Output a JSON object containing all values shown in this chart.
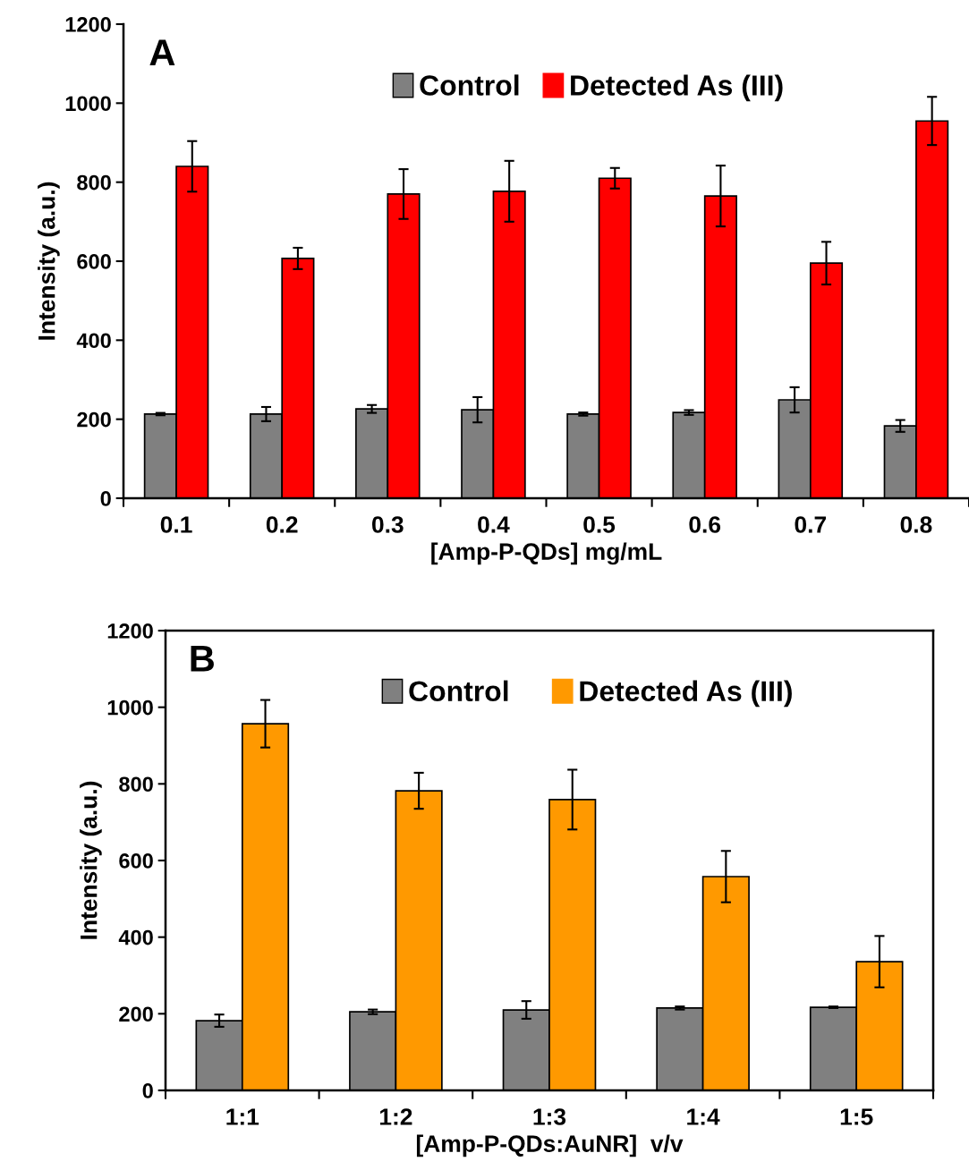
{
  "chart_data": [
    {
      "type": "bar",
      "xlabel": "[Amp-P-QDs] mg/mL",
      "ylabel": "Intensity (a.u.)",
      "annotations": [
        "A"
      ],
      "categories": [
        "0.1",
        "0.2",
        "0.3",
        "0.4",
        "0.5",
        "0.6",
        "0.7",
        "0.8"
      ],
      "series": [
        {
          "name": "Control",
          "color": "#808080",
          "values": [
            213,
            213,
            226,
            224,
            213,
            217,
            249,
            183
          ],
          "errors": [
            3,
            18,
            10,
            32,
            4,
            6,
            32,
            15
          ]
        },
        {
          "name": "Detected As (III)",
          "color": "#ff0000",
          "values": [
            840,
            607,
            770,
            777,
            810,
            765,
            595,
            955
          ],
          "errors": [
            64,
            27,
            63,
            77,
            26,
            77,
            54,
            61
          ]
        }
      ],
      "ylim": [
        0,
        1200
      ],
      "yticks": [
        0,
        200,
        400,
        600,
        800,
        1000,
        1200
      ],
      "grid": false,
      "legend": "top"
    },
    {
      "type": "bar",
      "xlabel": "[Amp-P-QDs:AuNR]  v/v",
      "ylabel": "Intensity (a.u.)",
      "annotations": [
        "B"
      ],
      "categories": [
        "1:1",
        "1:2",
        "1:3",
        "1:4",
        "1:5"
      ],
      "series": [
        {
          "name": "Control",
          "color": "#808080",
          "values": [
            182,
            205,
            210,
            215,
            217
          ],
          "errors": [
            16,
            6,
            23,
            4,
            2
          ]
        },
        {
          "name": "Detected As (III)",
          "color": "#ff9900",
          "values": [
            957,
            782,
            759,
            558,
            336
          ],
          "errors": [
            62,
            47,
            78,
            67,
            67
          ]
        }
      ],
      "ylim": [
        0,
        1200
      ],
      "yticks": [
        0,
        200,
        400,
        600,
        800,
        1000,
        1200
      ],
      "grid": false,
      "legend": "top"
    }
  ]
}
